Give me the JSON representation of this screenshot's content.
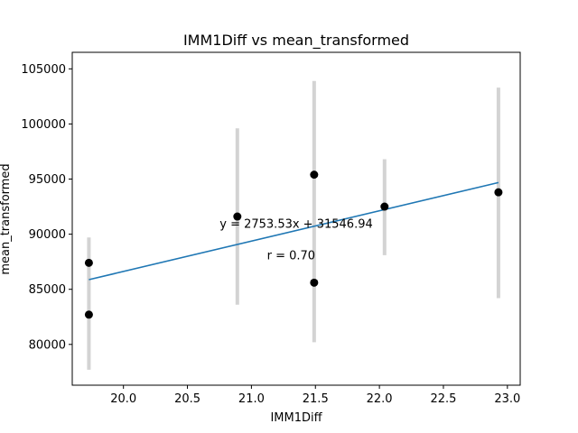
{
  "chart_data": {
    "type": "scatter",
    "title": "IMM1Diff vs mean_transformed",
    "xlabel": "IMM1Diff",
    "ylabel": "mean_transformed",
    "xlim": [
      19.6,
      23.1
    ],
    "ylim": [
      76300,
      106500
    ],
    "xticks": [
      20.0,
      20.5,
      21.0,
      21.5,
      22.0,
      22.5,
      23.0
    ],
    "xtick_labels": [
      "20.0",
      "20.5",
      "21.0",
      "21.5",
      "22.0",
      "22.5",
      "23.0"
    ],
    "yticks": [
      80000,
      85000,
      90000,
      95000,
      100000,
      105000
    ],
    "ytick_labels": [
      "80000",
      "85000",
      "90000",
      "95000",
      "100000",
      "105000"
    ],
    "grid": false,
    "colors": {
      "points": "#000000",
      "fit_line": "#1f77b4",
      "error_bars": "#d3d3d3"
    },
    "points": [
      {
        "x": 19.73,
        "y": 87400
      },
      {
        "x": 19.73,
        "y": 82700
      },
      {
        "x": 20.89,
        "y": 91600
      },
      {
        "x": 21.49,
        "y": 95400
      },
      {
        "x": 21.49,
        "y": 85600
      },
      {
        "x": 22.04,
        "y": 92500
      },
      {
        "x": 22.93,
        "y": 93800
      }
    ],
    "error_bars": [
      {
        "x": 19.73,
        "low": 77700,
        "high": 89700
      },
      {
        "x": 20.89,
        "low": 83600,
        "high": 99600
      },
      {
        "x": 21.49,
        "low": 80200,
        "high": 103900
      },
      {
        "x": 22.04,
        "low": 88100,
        "high": 96800
      },
      {
        "x": 22.93,
        "low": 84200,
        "high": 103300
      }
    ],
    "fit": {
      "slope": 2753.53,
      "intercept": 31546.94,
      "x_range": [
        19.73,
        22.93
      ]
    },
    "annotations": [
      {
        "text": "y = 2753.53x + 31546.94",
        "x": 21.35,
        "y": 90600
      },
      {
        "text": "r = 0.70",
        "x": 21.31,
        "y": 87700
      }
    ]
  }
}
